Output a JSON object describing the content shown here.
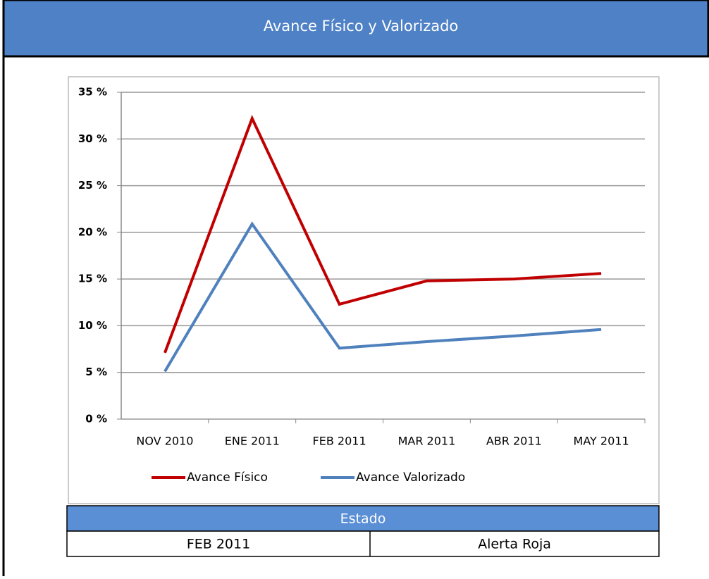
{
  "header": {
    "title": "Avance Físico y Valorizado"
  },
  "chart_data": {
    "type": "line",
    "categories": [
      "NOV 2010",
      "ENE 2011",
      "FEB 2011",
      "MAR 2011",
      "ABR 2011",
      "MAY 2011"
    ],
    "series": [
      {
        "name": "Avance Físico",
        "color": "#c00000",
        "values": [
          7.1,
          32.2,
          12.3,
          14.8,
          15.0,
          15.6
        ]
      },
      {
        "name": "Avance Valorizado",
        "color": "#4f81bd",
        "values": [
          5.1,
          20.9,
          7.6,
          8.3,
          8.9,
          9.6
        ]
      }
    ],
    "ylim": [
      0,
      35
    ],
    "yticks": [
      {
        "value": 0,
        "label": "0 %"
      },
      {
        "value": 5,
        "label": "5 %"
      },
      {
        "value": 10,
        "label": "10 %"
      },
      {
        "value": 15,
        "label": "15 %"
      },
      {
        "value": 20,
        "label": "20 %"
      },
      {
        "value": 25,
        "label": "25 %"
      },
      {
        "value": 30,
        "label": "30 %"
      },
      {
        "value": 35,
        "label": "35 %"
      }
    ],
    "grid": true,
    "legend": "bottom"
  },
  "status": {
    "title": "Estado",
    "rows": [
      [
        "FEB 2011",
        "Alerta Roja"
      ]
    ]
  }
}
